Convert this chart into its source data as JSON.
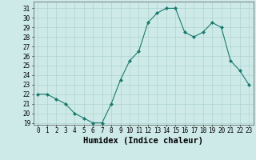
{
  "x": [
    0,
    1,
    2,
    3,
    4,
    5,
    6,
    7,
    8,
    9,
    10,
    11,
    12,
    13,
    14,
    15,
    16,
    17,
    18,
    19,
    20,
    21,
    22,
    23
  ],
  "y": [
    22,
    22,
    21.5,
    21,
    20,
    19.5,
    19,
    19,
    21,
    23.5,
    25.5,
    26.5,
    29.5,
    30.5,
    31,
    31,
    28.5,
    28,
    28.5,
    29.5,
    29,
    25.5,
    24.5,
    23
  ],
  "xlabel": "Humidex (Indice chaleur)",
  "ylim_min": 18.8,
  "ylim_max": 31.7,
  "yticks": [
    19,
    20,
    21,
    22,
    23,
    24,
    25,
    26,
    27,
    28,
    29,
    30,
    31
  ],
  "xticks": [
    0,
    1,
    2,
    3,
    4,
    5,
    6,
    7,
    8,
    9,
    10,
    11,
    12,
    13,
    14,
    15,
    16,
    17,
    18,
    19,
    20,
    21,
    22,
    23
  ],
  "line_color": "#1a7a6e",
  "marker_color": "#1a7a6e",
  "bg_color": "#ceeae8",
  "grid_color": "#aed4d0",
  "tick_fontsize": 5.5,
  "xlabel_fontsize": 7.5
}
